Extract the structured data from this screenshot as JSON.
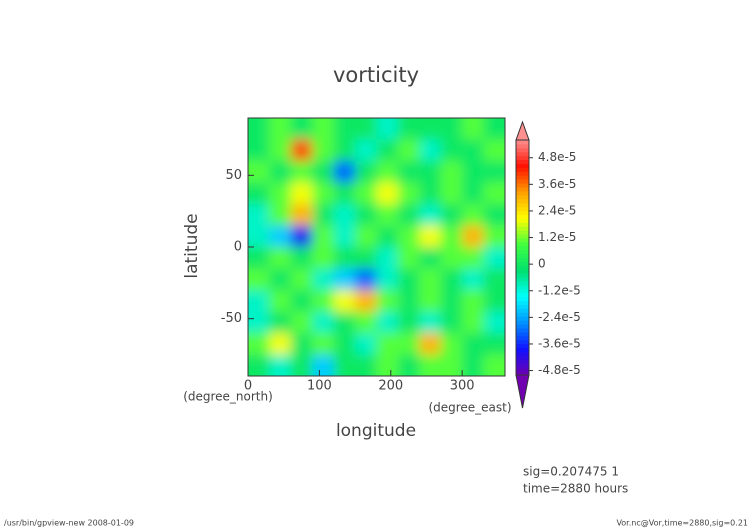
{
  "chart_data": {
    "type": "heatmap",
    "title": "vorticity",
    "x_label": "longitude",
    "y_label": "latitude",
    "x_unit": "(degree_east)",
    "y_unit": "(degree_north)",
    "annotations": [
      "sig=0.207475 1",
      "time=2880 hours"
    ],
    "footer_left": "/usr/bin/gpview-new  2008-01-09",
    "footer_right": "Vor.nc@Vor,time=2880,sig=0.21",
    "xlim": [
      0,
      360
    ],
    "xticks": [
      0,
      100,
      200,
      300
    ],
    "ylim": [
      -90,
      90
    ],
    "yticks": [
      -50,
      0,
      50
    ],
    "x": [
      15,
      45,
      75,
      105,
      135,
      165,
      195,
      225,
      255,
      285,
      315,
      345
    ],
    "y": [
      82.5,
      67.5,
      52.5,
      37.5,
      22.5,
      7.5,
      -7.5,
      -22.5,
      -37.5,
      -52.5,
      -67.5,
      -82.5
    ],
    "z": [
      [
        0,
        1e-05,
        0,
        1e-05,
        0,
        0,
        -1e-05,
        0,
        0,
        0,
        1e-05,
        0
      ],
      [
        0,
        1e-05,
        4e-05,
        1e-05,
        0,
        -1e-05,
        0,
        1e-05,
        -1e-05,
        0,
        0,
        1e-05
      ],
      [
        1e-05,
        0,
        1e-05,
        0,
        -3e-05,
        0,
        1e-05,
        0,
        0,
        1e-05,
        0,
        0
      ],
      [
        0,
        1e-05,
        2e-05,
        1e-05,
        0,
        1e-05,
        2e-05,
        1e-05,
        0,
        1e-05,
        0,
        1e-05
      ],
      [
        -1e-05,
        1e-05,
        3e-05,
        0,
        -1e-05,
        0,
        1e-05,
        0,
        -1e-05,
        0,
        1e-05,
        0
      ],
      [
        -1e-05,
        -2e-05,
        -4e-05,
        1e-05,
        -1e-05,
        1e-05,
        0,
        1e-05,
        2e-05,
        1e-05,
        3e-05,
        1e-05
      ],
      [
        0,
        1e-05,
        0,
        1e-05,
        0,
        0,
        -1e-05,
        1e-05,
        0,
        1e-05,
        1e-05,
        -1e-05
      ],
      [
        1e-05,
        0,
        1e-05,
        -1e-05,
        -2e-05,
        -3e-05,
        -1e-05,
        0,
        1e-05,
        0,
        -1e-05,
        0
      ],
      [
        -1e-05,
        1e-05,
        0,
        1e-05,
        2e-05,
        3e-05,
        1e-05,
        0,
        1e-05,
        0,
        1e-05,
        0
      ],
      [
        -1e-05,
        0,
        1e-05,
        -1e-05,
        0,
        1e-05,
        -1e-05,
        0,
        -1e-05,
        0,
        1e-05,
        -1e-05
      ],
      [
        1e-05,
        2e-05,
        0,
        1e-05,
        0,
        -1e-05,
        1e-05,
        1e-05,
        3e-05,
        1e-05,
        0,
        0
      ],
      [
        0,
        -1e-05,
        0,
        -2e-05,
        0,
        0,
        1e-05,
        0,
        1e-05,
        1e-05,
        0,
        1e-05
      ]
    ],
    "clim": [
      -5e-05,
      5.6e-05
    ],
    "cticks": [
      {
        "value": -4.8e-05,
        "label": "-4.8e-5"
      },
      {
        "value": -3.6e-05,
        "label": "-3.6e-5"
      },
      {
        "value": -2.4e-05,
        "label": "-2.4e-5"
      },
      {
        "value": -1.2e-05,
        "label": "-1.2e-5"
      },
      0,
      {
        "value": 1.2e-05,
        "label": "1.2e-5"
      },
      {
        "value": 2.4e-05,
        "label": "2.4e-5"
      },
      {
        "value": 3.6e-05,
        "label": "3.6e-5"
      },
      {
        "value": 4.8e-05,
        "label": "4.8e-5"
      }
    ],
    "colormap": [
      "#7000b0",
      "#1010ff",
      "#0090ff",
      "#00ffff",
      "#00e070",
      "#40ff40",
      "#ffff00",
      "#ffa000",
      "#ff1000",
      "#ff9090"
    ]
  }
}
